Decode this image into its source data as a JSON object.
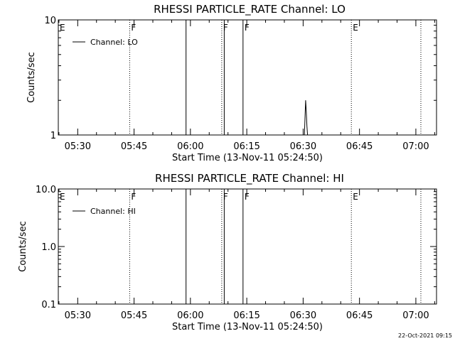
{
  "chart_data": [
    {
      "type": "line",
      "title": "RHESSI PARTICLE_RATE Channel: LO",
      "xlabel": "Start Time (13-Nov-11 05:24:50)",
      "ylabel": "Counts/sec",
      "y_scale": "log",
      "ylim": [
        1,
        10
      ],
      "y_tick_labels": [
        "1",
        "10"
      ],
      "x_tick_labels": [
        "05:30",
        "05:45",
        "06:00",
        "06:15",
        "06:30",
        "06:45",
        "07:00"
      ],
      "legend": "top-left",
      "series": [
        {
          "name": "Channel: LO",
          "x": [
            "06:30:00",
            "06:30:20",
            "06:30:30",
            "06:30:40",
            "06:30:50",
            "06:31:00",
            "06:31:10"
          ],
          "y": [
            1,
            1,
            1.4,
            2.0,
            1.6,
            1.2,
            1
          ]
        }
      ],
      "markers": [
        {
          "label": "E",
          "time": "05:24:50",
          "style": "solid"
        },
        {
          "label": "F",
          "time": "05:43:50",
          "style": "dotted"
        },
        {
          "label": "",
          "time": "05:58:50",
          "style": "solid"
        },
        {
          "label": "F",
          "time": "06:08:20",
          "style": "dotted"
        },
        {
          "label": "",
          "time": "06:09:00",
          "style": "solid"
        },
        {
          "label": "F",
          "time": "06:14:00",
          "style": "solid"
        },
        {
          "label": "E",
          "time": "06:42:50",
          "style": "dotted"
        },
        {
          "label": "",
          "time": "07:01:20",
          "style": "dotted"
        }
      ]
    },
    {
      "type": "line",
      "title": "RHESSI PARTICLE_RATE Channel: HI",
      "xlabel": "Start Time (13-Nov-11 05:24:50)",
      "ylabel": "Counts/sec",
      "y_scale": "log",
      "ylim": [
        0.1,
        10
      ],
      "y_tick_labels": [
        "0.1",
        "1.0",
        "10.0"
      ],
      "x_tick_labels": [
        "05:30",
        "05:45",
        "06:00",
        "06:15",
        "06:30",
        "06:45",
        "07:00"
      ],
      "legend": "top-left",
      "series": [
        {
          "name": "Channel: HI",
          "x": [],
          "y": []
        }
      ],
      "markers": [
        {
          "label": "E",
          "time": "05:24:50",
          "style": "solid"
        },
        {
          "label": "F",
          "time": "05:43:50",
          "style": "dotted"
        },
        {
          "label": "",
          "time": "05:58:50",
          "style": "solid"
        },
        {
          "label": "F",
          "time": "06:08:20",
          "style": "dotted"
        },
        {
          "label": "",
          "time": "06:09:00",
          "style": "solid"
        },
        {
          "label": "F",
          "time": "06:14:00",
          "style": "solid"
        },
        {
          "label": "E",
          "time": "06:42:50",
          "style": "dotted"
        },
        {
          "label": "",
          "time": "07:01:20",
          "style": "dotted"
        }
      ]
    }
  ],
  "footer": {
    "timestamp": "22-Oct-2021 09:15"
  }
}
